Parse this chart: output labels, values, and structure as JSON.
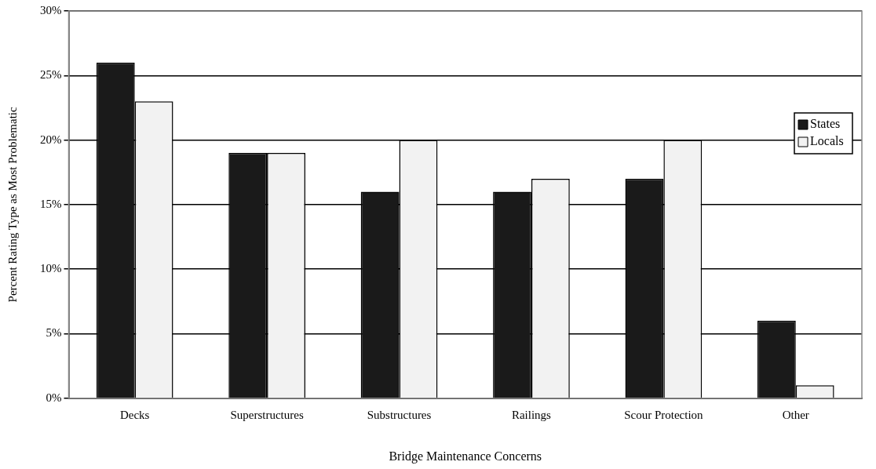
{
  "chart_data": {
    "type": "bar",
    "xlabel": "Bridge Maintenance Concerns",
    "ylabel": "Percent Rating Type as Most Problematic",
    "categories": [
      "Decks",
      "Superstructures",
      "Substructures",
      "Railings",
      "Scour Protection",
      "Other"
    ],
    "series": [
      {
        "name": "States",
        "color": "#1a1a1a",
        "values": [
          26,
          19,
          16,
          16,
          17,
          6
        ]
      },
      {
        "name": "Locals",
        "color": "#f2f2f2",
        "values": [
          23,
          19,
          20,
          17,
          20,
          1
        ]
      }
    ],
    "ylim": [
      0,
      30
    ],
    "yticks": [
      {
        "value": 0,
        "label": "0%"
      },
      {
        "value": 5,
        "label": "5%"
      },
      {
        "value": 10,
        "label": "10%"
      },
      {
        "value": 15,
        "label": "15%"
      },
      {
        "value": 20,
        "label": "20%"
      },
      {
        "value": 25,
        "label": "25%"
      },
      {
        "value": 30,
        "label": "30%"
      }
    ],
    "grid": "y",
    "legend": "top right"
  }
}
